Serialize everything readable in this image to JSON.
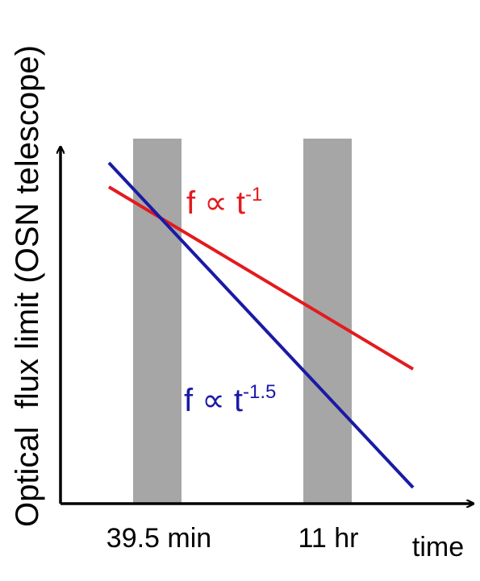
{
  "y_axis_label": "Optical  flux limit (OSN telescope)",
  "x_axis_label": "time",
  "epochs": [
    {
      "label": "39.5 min"
    },
    {
      "label": "11 hr"
    }
  ],
  "curves": [
    {
      "base": "f ∝ t",
      "exponent": "-1",
      "color": "#e41a1c"
    },
    {
      "base": "f ∝ t",
      "exponent": "-1.5",
      "color": "#1a1aa6"
    }
  ],
  "colors": {
    "band": "#a6a6a6",
    "axis": "#000000",
    "text": "#000000"
  }
}
